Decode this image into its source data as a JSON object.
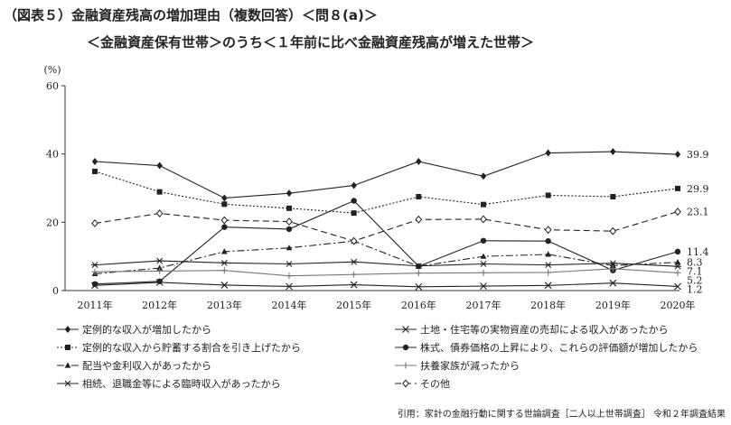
{
  "header": {
    "title": "（図表５）金融資産残高の増加理由（複数回答）＜問８(a)＞",
    "subtitle": "＜金融資産保有世帯＞のうち＜１年前に比べ金融資産残高が増えた世帯＞"
  },
  "source": "引用：家計の金融行動に関する世論調査［二人以上世帯調査］ 令和２年調査結果",
  "chart_data": {
    "type": "line",
    "title": "",
    "ylabel": "(%)",
    "xlabel": "",
    "ylim": [
      0,
      60
    ],
    "yticks": [
      0,
      20,
      40,
      60
    ],
    "grid": false,
    "legend_position": "bottom",
    "categories": [
      "2011年",
      "2012年",
      "2013年",
      "2014年",
      "2015年",
      "2016年",
      "2017年",
      "2018年",
      "2019年",
      "2020年"
    ],
    "series": [
      {
        "name": "定例的な収入が増加したから",
        "marker": "diamond",
        "dash": "solid",
        "color": "#222222",
        "values": [
          37.8,
          36.6,
          27.1,
          28.5,
          30.8,
          37.8,
          33.5,
          40.3,
          40.7,
          39.9
        ],
        "end_label": "39.9"
      },
      {
        "name": "定例的な収入から貯蓄する割合を引き上げたから",
        "marker": "square",
        "dash": "dotted",
        "color": "#222222",
        "values": [
          34.9,
          28.9,
          25.3,
          24.1,
          22.7,
          27.5,
          25.2,
          27.9,
          27.5,
          29.9
        ],
        "end_label": "29.9"
      },
      {
        "name": "配当や金利収入があったから",
        "marker": "triangle",
        "dash": "dashdot",
        "color": "#222222",
        "values": [
          4.9,
          6.6,
          11.4,
          12.5,
          14.5,
          7.1,
          10.0,
          10.6,
          7.3,
          8.3
        ],
        "end_label": "8.3"
      },
      {
        "name": "相続、退職金等による臨時収入があったから",
        "marker": "asterisk",
        "dash": "solid",
        "color": "#222222",
        "values": [
          7.5,
          8.7,
          8.1,
          7.8,
          8.4,
          7.2,
          7.8,
          7.5,
          8.0,
          7.1
        ],
        "end_label": "7.1"
      },
      {
        "name": "土地・住宅等の実物資産の売却による収入があったから",
        "marker": "x",
        "dash": "solid",
        "color": "#222222",
        "values": [
          1.5,
          2.4,
          1.6,
          1.2,
          1.7,
          1.1,
          1.3,
          1.5,
          2.2,
          1.2
        ],
        "end_label": "1.2"
      },
      {
        "name": "株式、債券価格の上昇により、これらの評価額が増加したから",
        "marker": "circle",
        "dash": "solid",
        "color": "#222222",
        "values": [
          1.9,
          2.7,
          18.6,
          18.0,
          26.3,
          7.1,
          14.6,
          14.5,
          5.9,
          11.4
        ],
        "end_label": "11.4"
      },
      {
        "name": "扶養家族が減ったから",
        "marker": "plus",
        "dash": "solid",
        "color": "#777777",
        "values": [
          5.5,
          5.7,
          5.9,
          4.3,
          4.7,
          5.1,
          5.2,
          5.3,
          6.4,
          5.2
        ],
        "end_label": "5.2"
      },
      {
        "name": "その他",
        "marker": "open-diamond",
        "dash": "dashed",
        "color": "#222222",
        "values": [
          19.7,
          22.6,
          20.6,
          20.2,
          14.5,
          20.8,
          20.9,
          17.8,
          17.4,
          23.1
        ],
        "end_label": "23.1"
      }
    ],
    "legend_order": [
      0,
      4,
      1,
      5,
      2,
      6,
      3,
      7
    ]
  }
}
